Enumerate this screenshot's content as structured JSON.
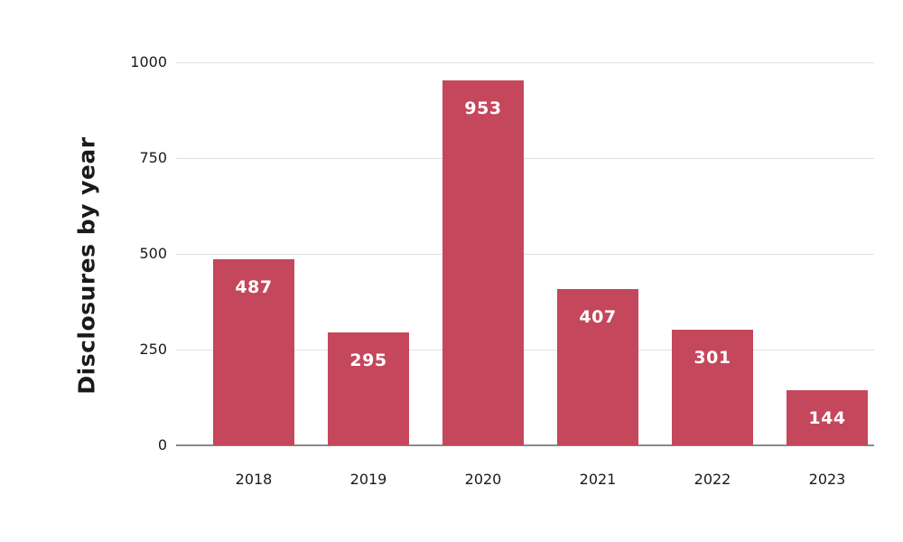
{
  "chart_data": {
    "type": "bar",
    "title": "",
    "xlabel": "",
    "ylabel": "Disclosures by year",
    "categories": [
      "2018",
      "2019",
      "2020",
      "2021",
      "2022",
      "2023"
    ],
    "values": [
      487,
      295,
      953,
      407,
      301,
      144
    ],
    "ylim": [
      0,
      1000
    ],
    "yticks": [
      0,
      250,
      500,
      750,
      1000
    ],
    "grid": "horizontal",
    "legend": false,
    "value_labels": [
      "487",
      "295",
      "953",
      "407",
      "301",
      "144"
    ],
    "colors": {
      "bar": "#C5475C",
      "value_label_text": "#FFFFFF",
      "axis_text": "#1A1A1A",
      "gridline": "#E0E0E0",
      "axis_line": "#8A8A8A",
      "background": "#FFFFFF"
    }
  }
}
